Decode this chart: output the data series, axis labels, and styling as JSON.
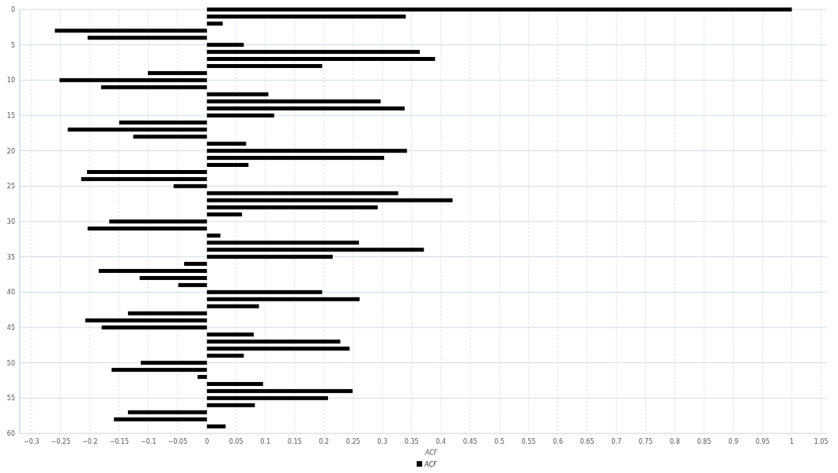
{
  "chart_data": {
    "type": "bar",
    "orientation": "horizontal",
    "xlabel": "ACF",
    "legend": "bottom",
    "grid": true,
    "x": [
      0,
      1,
      2,
      3,
      4,
      5,
      6,
      7,
      8,
      9,
      10,
      11,
      12,
      13,
      14,
      15,
      16,
      17,
      18,
      19,
      20,
      21,
      22,
      23,
      24,
      25,
      26,
      27,
      28,
      29,
      30,
      31,
      32,
      33,
      34,
      35,
      36,
      37,
      38,
      39,
      40,
      41,
      42,
      43,
      44,
      45,
      46,
      47,
      48,
      49,
      50,
      51,
      52,
      53,
      54,
      55,
      56,
      57,
      58,
      59
    ],
    "series": [
      {
        "name": "ACF",
        "color": "#000000",
        "values": [
          1.0,
          0.34,
          0.027,
          -0.26,
          -0.204,
          0.063,
          0.364,
          0.39,
          0.197,
          -0.101,
          -0.252,
          -0.181,
          0.105,
          0.297,
          0.338,
          0.115,
          -0.15,
          -0.238,
          -0.126,
          0.067,
          0.342,
          0.303,
          0.071,
          -0.205,
          -0.215,
          -0.057,
          0.327,
          0.42,
          0.292,
          0.06,
          -0.167,
          -0.204,
          0.023,
          0.26,
          0.371,
          0.215,
          -0.039,
          -0.185,
          -0.115,
          -0.049,
          0.197,
          0.261,
          0.089,
          -0.135,
          -0.208,
          -0.18,
          0.08,
          0.228,
          0.244,
          0.063,
          -0.113,
          -0.163,
          -0.016,
          0.096,
          0.249,
          0.207,
          0.082,
          -0.135,
          -0.159,
          0.032
        ]
      }
    ],
    "xlim": [
      -0.32,
      1.06
    ],
    "xticks": [
      {
        "value": -0.3,
        "label": "−0.3"
      },
      {
        "value": -0.25,
        "label": "−0.25"
      },
      {
        "value": -0.2,
        "label": "−0.2"
      },
      {
        "value": -0.15,
        "label": "−0.15"
      },
      {
        "value": -0.1,
        "label": "−0.1"
      },
      {
        "value": -0.05,
        "label": "−0.05"
      },
      0,
      0.05,
      0.1,
      0.15,
      0.2,
      0.25,
      0.3,
      0.35,
      0.4,
      0.45,
      0.5,
      0.55,
      0.6,
      0.65,
      0.7,
      0.75,
      0.8,
      0.85,
      0.9,
      0.95,
      1,
      1.05
    ],
    "ylim": [
      60,
      0
    ],
    "yticks": [
      0,
      5,
      10,
      15,
      20,
      25,
      30,
      35,
      40,
      45,
      50,
      55,
      60
    ]
  }
}
